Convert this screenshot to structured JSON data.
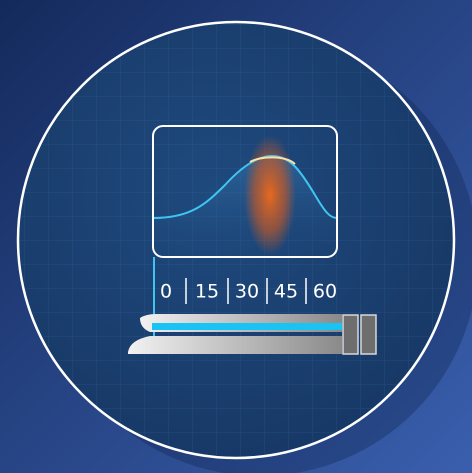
{
  "scale": {
    "labels": [
      "0",
      "15",
      "30",
      "45",
      "60"
    ]
  }
}
